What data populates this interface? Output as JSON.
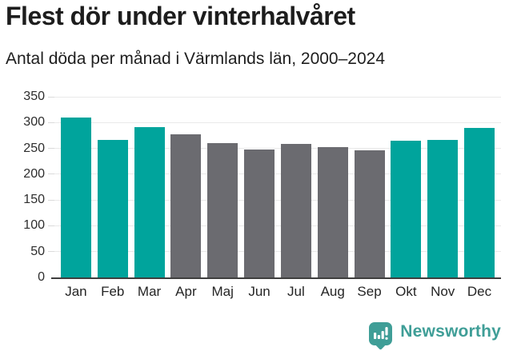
{
  "title": "Flest dör under vinterhalvåret",
  "subtitle": "Antal döda per månad i Värmlands län, 2000–2024",
  "chart_data": {
    "type": "bar",
    "categories": [
      "Jan",
      "Feb",
      "Mar",
      "Apr",
      "Maj",
      "Jun",
      "Jul",
      "Aug",
      "Sep",
      "Okt",
      "Nov",
      "Dec"
    ],
    "values": [
      310,
      267,
      291,
      277,
      260,
      248,
      258,
      252,
      246,
      265,
      266,
      290
    ],
    "bar_roles": [
      "highlight",
      "highlight",
      "highlight",
      "default",
      "default",
      "default",
      "default",
      "default",
      "default",
      "highlight",
      "highlight",
      "highlight"
    ],
    "title": "Flest dör under vinterhalvåret",
    "subtitle": "Antal döda per månad i Värmlands län, 2000–2024",
    "xlabel": "",
    "ylabel": "",
    "ylim": [
      0,
      350
    ],
    "yticks": [
      0,
      50,
      100,
      150,
      200,
      250,
      300,
      350
    ],
    "grid": true,
    "legend": false,
    "colors": {
      "highlight": "#00a49c",
      "default": "#6b6b70",
      "gridline": "#e9e9e9",
      "axis": "#3e3e3e"
    }
  },
  "footer": {
    "brand": "Newsworthy",
    "brand_color": "#3f9e97",
    "logo_icon": "bar-chart-speech-bubble-icon"
  }
}
